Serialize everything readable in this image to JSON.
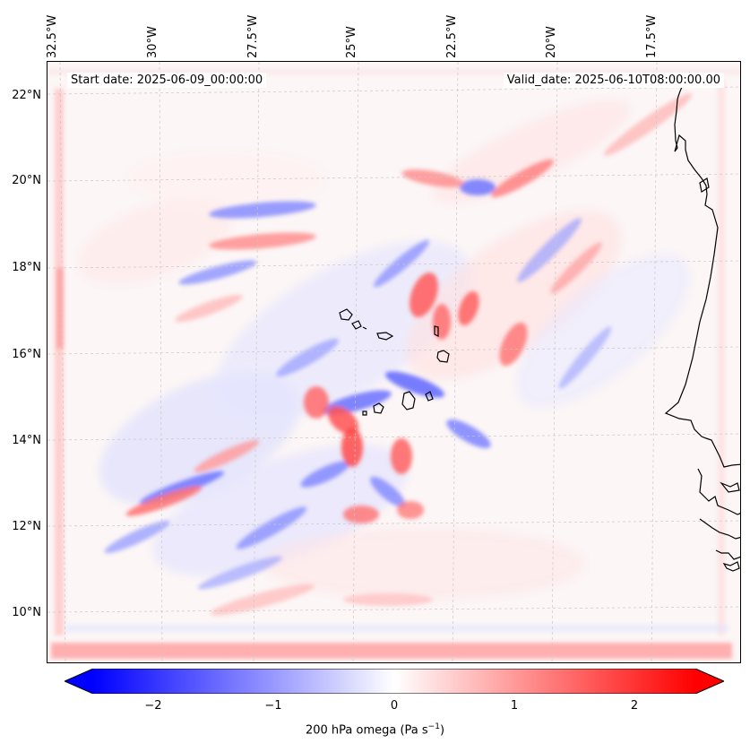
{
  "header": {
    "start_date": "Start date: 2025-06-09_00:00:00",
    "valid_date": "Valid_date: 2025-06-10T08:00:00.00"
  },
  "longitude_labels": [
    "32.5°W",
    "30°W",
    "27.5°W",
    "25°W",
    "22.5°W",
    "20°W",
    "17.5°W"
  ],
  "latitude_labels": [
    "22°N",
    "20°N",
    "18°N",
    "16°N",
    "14°N",
    "12°N",
    "10°N"
  ],
  "colorbar": {
    "ticks": [
      "−2",
      "−1",
      "0",
      "1",
      "2"
    ],
    "title": "200 hPa omega (Pa s",
    "title_exponent": "−1",
    "title_close": ")",
    "min_color": "#0000ff",
    "mid_color": "#ffffff",
    "max_color": "#ff0000"
  },
  "colors": {
    "ascent": "#0000ff",
    "descent": "#ff0000",
    "coastline": "#000000",
    "gridline": "#c8c8c8"
  }
}
